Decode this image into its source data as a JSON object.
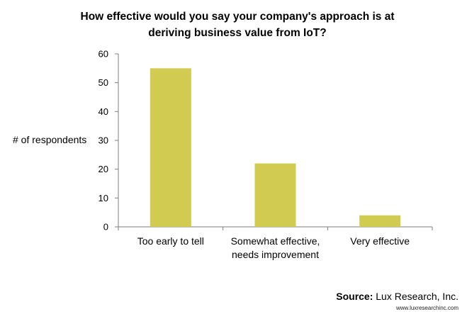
{
  "chart_data": {
    "type": "bar",
    "title_lines": [
      "How effective would you say your company's approach is at",
      "deriving business value from IoT?"
    ],
    "xlabel": "",
    "ylabel": "# of respondents",
    "categories": [
      [
        "Too early to tell"
      ],
      [
        "Somewhat effective,",
        "needs improvement"
      ],
      [
        "Very effective"
      ]
    ],
    "values": [
      55,
      22,
      4
    ],
    "ylim": [
      0,
      60
    ],
    "yticks": [
      0,
      10,
      20,
      30,
      40,
      50,
      60
    ],
    "grid": false,
    "legend": "none",
    "bar_color": "#d1cb52",
    "axis_color": "#7f7f7f"
  },
  "source": {
    "label": "Source:",
    "text": "Lux Research, Inc.",
    "url": "www.luxresearchinc.com"
  }
}
